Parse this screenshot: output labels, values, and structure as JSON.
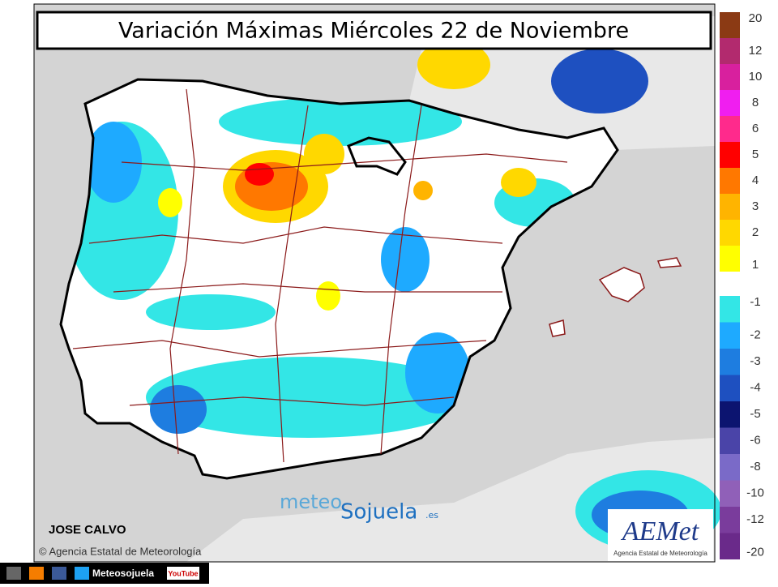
{
  "title": "Variación Máximas Miércoles 22 de Noviembre",
  "legend": {
    "positive": [
      {
        "value": 20,
        "color": "#8b3a14"
      },
      {
        "value": 12,
        "color": "#b22a6e"
      },
      {
        "value": 10,
        "color": "#d8209e"
      },
      {
        "value": 8,
        "color": "#f01ef0"
      },
      {
        "value": 6,
        "color": "#ff2a8c"
      },
      {
        "value": 5,
        "color": "#ff0000"
      },
      {
        "value": 4,
        "color": "#ff7800"
      },
      {
        "value": 3,
        "color": "#ffb400"
      },
      {
        "value": 2,
        "color": "#ffd800"
      },
      {
        "value": 1,
        "color": "#ffff00"
      }
    ],
    "negative": [
      {
        "value": -1,
        "color": "#33e6e6"
      },
      {
        "value": -2,
        "color": "#1eaaff"
      },
      {
        "value": -3,
        "color": "#1e7de0"
      },
      {
        "value": -4,
        "color": "#1e50c0"
      },
      {
        "value": -5,
        "color": "#0c1470"
      },
      {
        "value": -6,
        "color": "#4a44a8"
      },
      {
        "value": -8,
        "color": "#7a6ac8"
      },
      {
        "value": -10,
        "color": "#9060b8"
      },
      {
        "value": -12,
        "color": "#7a3c9c"
      },
      {
        "value": -20,
        "color": "#6a2a8a"
      }
    ]
  },
  "author": "JOSE CALVO",
  "credit": "© Agencia Estatal de Meteorología",
  "watermark": {
    "left": "meteo",
    "right": "Sojuela",
    "suffix": ".es"
  },
  "aemet": {
    "logo": "AEMet",
    "subtitle": "Agencia Estatal de Meteorología"
  },
  "footer": {
    "label": "Meteosojuela",
    "youtube": "YouTube"
  }
}
